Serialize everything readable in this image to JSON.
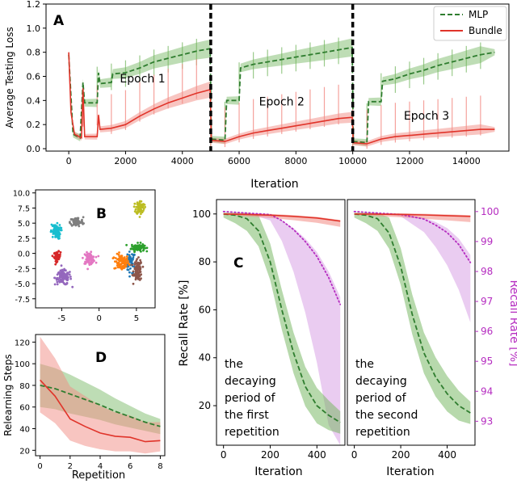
{
  "colors": {
    "mlp": "#2f7d2f",
    "mlp_band": "#6fb45a",
    "bundle": "#e0342a",
    "bundle_band": "#f28b84",
    "magenta": "#b52cc0",
    "magenta_band": "#d9a2e6"
  },
  "chart_data": [
    {
      "panel": "A",
      "type": "line",
      "ylabel": "Average Testing Loss",
      "xlabel": "Iteration",
      "xlim": [
        -800,
        15500
      ],
      "ylim": [
        -0.02,
        1.2
      ],
      "xticks": [
        0,
        2000,
        4000,
        6000,
        8000,
        10000,
        12000,
        14000
      ],
      "xtick_labels": [
        "0",
        "2000",
        "4000",
        "6000",
        "8000",
        "10000",
        "12000",
        "14000"
      ],
      "yticks": [
        0.0,
        0.2,
        0.4,
        0.6,
        0.8,
        1.0,
        1.2
      ],
      "ytick_labels": [
        "0.0",
        "0.2",
        "0.4",
        "0.6",
        "0.8",
        "1.0",
        "1.2"
      ],
      "epoch_boundaries": [
        5000,
        10000
      ],
      "annotations": [
        {
          "text": "Epoch 1",
          "x": 1800,
          "y": 0.55
        },
        {
          "text": "Epoch 2",
          "x": 6700,
          "y": 0.36
        },
        {
          "text": "Epoch 3",
          "x": 11800,
          "y": 0.24
        }
      ],
      "legend": [
        "MLP",
        "Bundle"
      ],
      "series": [
        {
          "name": "MLP",
          "style": "dashed",
          "points": [
            [
              0,
              0.78
            ],
            [
              150,
              0.12
            ],
            [
              400,
              0.09
            ],
            [
              500,
              0.55
            ],
            [
              560,
              0.38
            ],
            [
              1000,
              0.38
            ],
            [
              1050,
              0.63
            ],
            [
              1100,
              0.54
            ],
            [
              1500,
              0.55
            ],
            [
              1550,
              0.62
            ],
            [
              2000,
              0.63
            ],
            [
              2500,
              0.67
            ],
            [
              3000,
              0.72
            ],
            [
              3500,
              0.75
            ],
            [
              4000,
              0.78
            ],
            [
              4500,
              0.81
            ],
            [
              4980,
              0.83
            ],
            [
              5020,
              0.08
            ],
            [
              5500,
              0.07
            ],
            [
              5560,
              0.4
            ],
            [
              6000,
              0.4
            ],
            [
              6050,
              0.67
            ],
            [
              6500,
              0.7
            ],
            [
              7000,
              0.72
            ],
            [
              7500,
              0.74
            ],
            [
              8000,
              0.76
            ],
            [
              8500,
              0.78
            ],
            [
              9000,
              0.8
            ],
            [
              9500,
              0.82
            ],
            [
              9980,
              0.84
            ],
            [
              10020,
              0.06
            ],
            [
              10500,
              0.05
            ],
            [
              10560,
              0.39
            ],
            [
              11000,
              0.39
            ],
            [
              11050,
              0.56
            ],
            [
              11500,
              0.58
            ],
            [
              12000,
              0.62
            ],
            [
              12500,
              0.65
            ],
            [
              13000,
              0.69
            ],
            [
              13500,
              0.72
            ],
            [
              14000,
              0.75
            ],
            [
              14500,
              0.78
            ],
            [
              15000,
              0.8
            ]
          ]
        },
        {
          "name": "Bundle",
          "style": "solid",
          "points": [
            [
              0,
              0.8
            ],
            [
              80,
              0.3
            ],
            [
              200,
              0.12
            ],
            [
              450,
              0.09
            ],
            [
              500,
              0.5
            ],
            [
              560,
              0.1
            ],
            [
              1000,
              0.1
            ],
            [
              1050,
              0.28
            ],
            [
              1100,
              0.16
            ],
            [
              1500,
              0.17
            ],
            [
              2000,
              0.2
            ],
            [
              2500,
              0.27
            ],
            [
              3000,
              0.33
            ],
            [
              3500,
              0.38
            ],
            [
              4000,
              0.42
            ],
            [
              4500,
              0.46
            ],
            [
              4980,
              0.49
            ],
            [
              5020,
              0.07
            ],
            [
              5500,
              0.06
            ],
            [
              6000,
              0.1
            ],
            [
              6500,
              0.13
            ],
            [
              7000,
              0.15
            ],
            [
              7500,
              0.17
            ],
            [
              8000,
              0.19
            ],
            [
              8500,
              0.21
            ],
            [
              9000,
              0.23
            ],
            [
              9500,
              0.25
            ],
            [
              9980,
              0.26
            ],
            [
              10020,
              0.05
            ],
            [
              10500,
              0.04
            ],
            [
              11000,
              0.08
            ],
            [
              11500,
              0.1
            ],
            [
              12000,
              0.11
            ],
            [
              12500,
              0.12
            ],
            [
              13000,
              0.13
            ],
            [
              13500,
              0.14
            ],
            [
              14000,
              0.15
            ],
            [
              14500,
              0.16
            ],
            [
              15000,
              0.16
            ]
          ]
        }
      ]
    },
    {
      "panel": "B",
      "type": "scatter",
      "xticks": [
        -5,
        0,
        5
      ],
      "xtick_labels": [
        "-5",
        "0",
        "5"
      ],
      "yticks": [
        -7.5,
        -5.0,
        -2.5,
        0.0,
        2.5,
        5.0,
        7.5,
        10.0
      ],
      "ytick_labels": [
        "-7.5",
        "-5.0",
        "-2.5",
        "0.0",
        "2.5",
        "5.0",
        "7.5",
        "10.0"
      ],
      "xlim": [
        -8.5,
        7.5
      ],
      "ylim": [
        -9,
        10.5
      ],
      "clusters": [
        {
          "color": "#1f77b4",
          "center": [
            4.2,
            -1.5
          ],
          "spread": [
            0.6,
            1.6
          ],
          "n": 50
        },
        {
          "color": "#ff7f0e",
          "center": [
            3.0,
            -1.5
          ],
          "spread": [
            0.9,
            1.2
          ],
          "n": 90
        },
        {
          "color": "#2ca02c",
          "center": [
            5.2,
            1.0
          ],
          "spread": [
            0.8,
            0.6
          ],
          "n": 90
        },
        {
          "color": "#d62728",
          "center": [
            -5.6,
            -0.5
          ],
          "spread": [
            0.4,
            0.7
          ],
          "n": 60
        },
        {
          "color": "#9467bd",
          "center": [
            -4.8,
            -4.0
          ],
          "spread": [
            1.0,
            1.1
          ],
          "n": 110
        },
        {
          "color": "#8c564b",
          "center": [
            5.2,
            -2.8
          ],
          "spread": [
            0.5,
            1.6
          ],
          "n": 90
        },
        {
          "color": "#e377c2",
          "center": [
            -1.3,
            -0.8
          ],
          "spread": [
            0.7,
            0.8
          ],
          "n": 80
        },
        {
          "color": "#7f7f7f",
          "center": [
            -3.0,
            5.2
          ],
          "spread": [
            0.8,
            0.7
          ],
          "n": 80
        },
        {
          "color": "#bcbd22",
          "center": [
            5.5,
            7.6
          ],
          "spread": [
            0.5,
            1.0
          ],
          "n": 80
        },
        {
          "color": "#17becf",
          "center": [
            -5.8,
            3.6
          ],
          "spread": [
            0.6,
            1.1
          ],
          "n": 80
        }
      ]
    },
    {
      "panel": "C",
      "type": "line",
      "ylabel": "Recall Rate [%]",
      "ylabel_right": "Recall Rate [%]",
      "xlabel": "Iteration",
      "xlim": [
        -30,
        520
      ],
      "ylim": [
        3.5,
        106
      ],
      "ylim_right": [
        92.2,
        100.4
      ],
      "xticks": [
        0,
        200,
        400
      ],
      "xtick_labels": [
        "0",
        "200",
        "400"
      ],
      "yticks": [
        20,
        40,
        60,
        80,
        100
      ],
      "ytick_labels": [
        "20",
        "40",
        "60",
        "80",
        "100"
      ],
      "yticks_right": [
        93,
        94,
        95,
        96,
        97,
        98,
        99,
        100
      ],
      "ytick_labels_right": [
        "93",
        "94",
        "95",
        "96",
        "97",
        "98",
        "99",
        "100"
      ],
      "subpanels": [
        {
          "annotation": [
            "the",
            "decaying",
            "period of",
            "the first",
            "repetition"
          ],
          "series": [
            {
              "name": "MLP",
              "style": "dashed",
              "points": [
                [
                  0,
                  100
                ],
                [
                  50,
                  99.5
                ],
                [
                  100,
                  98
                ],
                [
                  150,
                  93
                ],
                [
                  200,
                  80
                ],
                [
                  250,
                  60
                ],
                [
                  300,
                  42
                ],
                [
                  350,
                  28
                ],
                [
                  400,
                  20
                ],
                [
                  450,
                  16
                ],
                [
                  500,
                  13
                ]
              ]
            },
            {
              "name": "Bundle",
              "style": "solid",
              "points": [
                [
                  0,
                  100
                ],
                [
                  100,
                  99.8
                ],
                [
                  200,
                  99.5
                ],
                [
                  300,
                  99
                ],
                [
                  400,
                  98.3
                ],
                [
                  500,
                  97
                ]
              ]
            },
            {
              "name": "magenta-dotted",
              "style": "dotted",
              "points": [
                [
                  0,
                  100
                ],
                [
                  100,
                  99.95
                ],
                [
                  200,
                  99.9
                ],
                [
                  250,
                  99.7
                ],
                [
                  300,
                  99.4
                ],
                [
                  350,
                  99.0
                ],
                [
                  400,
                  98.5
                ],
                [
                  450,
                  97.8
                ],
                [
                  500,
                  96.9
                ]
              ]
            }
          ]
        },
        {
          "annotation": [
            "the",
            "decaying",
            "period of",
            "the second",
            "repetition"
          ],
          "series": [
            {
              "name": "MLP",
              "style": "dashed",
              "points": [
                [
                  0,
                  100
                ],
                [
                  50,
                  99.5
                ],
                [
                  100,
                  98
                ],
                [
                  150,
                  92
                ],
                [
                  200,
                  78
                ],
                [
                  250,
                  58
                ],
                [
                  300,
                  42
                ],
                [
                  350,
                  32
                ],
                [
                  400,
                  25
                ],
                [
                  450,
                  20
                ],
                [
                  500,
                  17
                ]
              ]
            },
            {
              "name": "Bundle",
              "style": "solid",
              "points": [
                [
                  0,
                  100
                ],
                [
                  100,
                  99.9
                ],
                [
                  200,
                  99.8
                ],
                [
                  300,
                  99.6
                ],
                [
                  400,
                  99.3
                ],
                [
                  500,
                  99
                ]
              ]
            },
            {
              "name": "magenta-dotted",
              "style": "dotted",
              "points": [
                [
                  0,
                  100
                ],
                [
                  100,
                  99.95
                ],
                [
                  200,
                  99.9
                ],
                [
                  300,
                  99.75
                ],
                [
                  350,
                  99.55
                ],
                [
                  400,
                  99.3
                ],
                [
                  450,
                  98.9
                ],
                [
                  500,
                  98.3
                ]
              ]
            }
          ]
        }
      ]
    },
    {
      "panel": "D",
      "type": "line",
      "ylabel": "Relearning Steps",
      "xlabel": "Repetition",
      "xlim": [
        -0.3,
        8.3
      ],
      "ylim": [
        15,
        127
      ],
      "xticks": [
        0,
        2,
        4,
        6,
        8
      ],
      "xtick_labels": [
        "0",
        "2",
        "4",
        "6",
        "8"
      ],
      "yticks": [
        20,
        40,
        60,
        80,
        100,
        120
      ],
      "ytick_labels": [
        "20",
        "40",
        "60",
        "80",
        "100",
        "120"
      ],
      "series": [
        {
          "name": "MLP",
          "style": "dashed",
          "x": [
            0,
            1,
            2,
            3,
            4,
            5,
            6,
            7,
            8
          ],
          "values": [
            80,
            77,
            72,
            67,
            62,
            56,
            51,
            46,
            42
          ]
        },
        {
          "name": "Bundle",
          "style": "solid",
          "x": [
            0,
            1,
            2,
            3,
            4,
            5,
            6,
            7,
            8
          ],
          "values": [
            85,
            70,
            49,
            42,
            36,
            33,
            32,
            28,
            29
          ]
        }
      ]
    }
  ]
}
